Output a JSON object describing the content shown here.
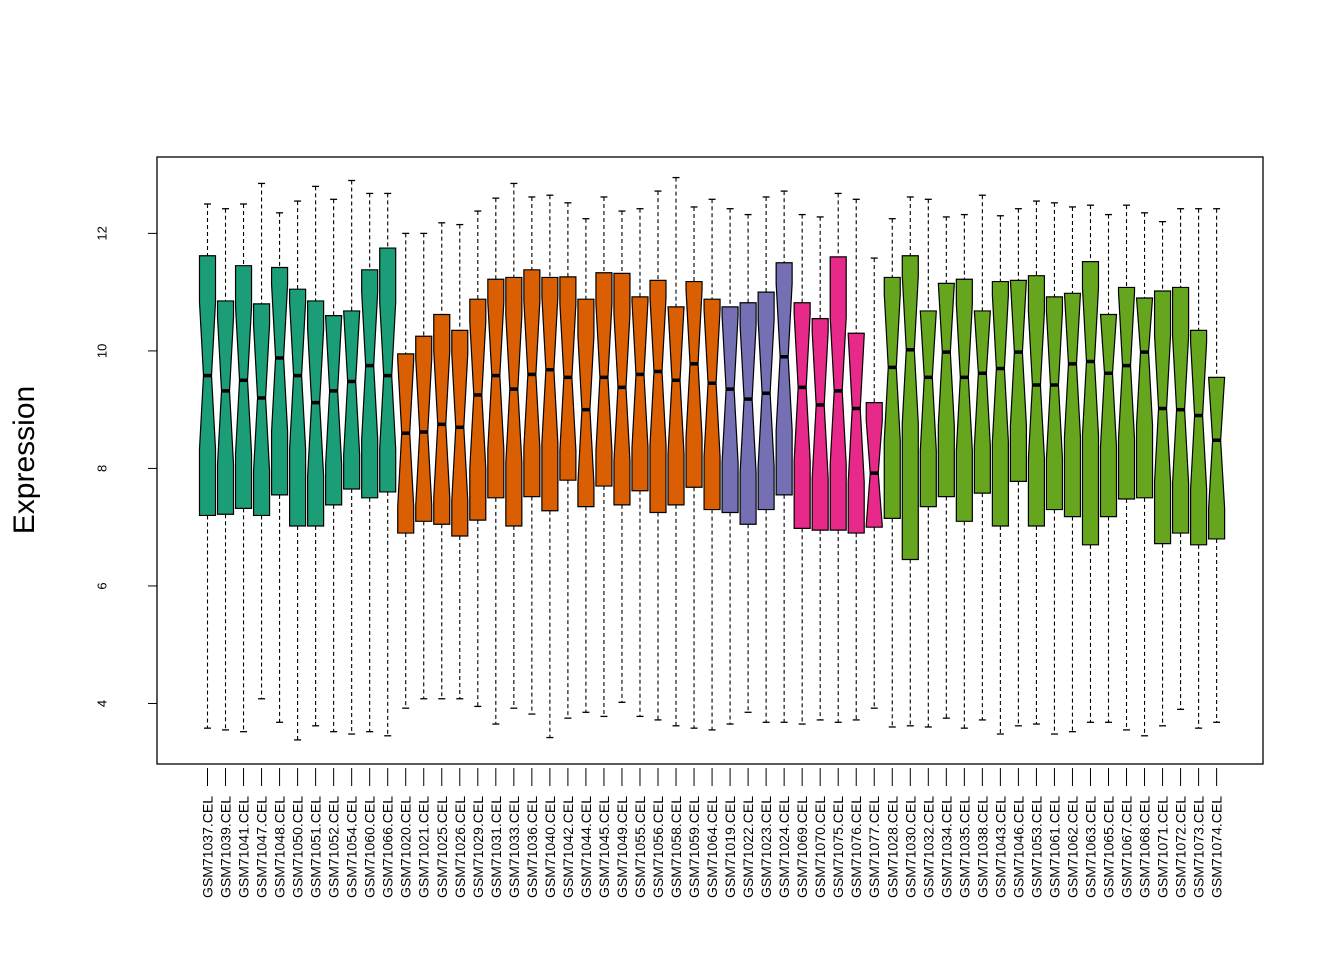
{
  "chart_data": {
    "type": "boxplot",
    "title": "",
    "xlabel": "",
    "ylabel": "Expression",
    "ylim": [
      2.97,
      13.3
    ],
    "yticks": [
      4,
      6,
      8,
      10,
      12
    ],
    "notched": true,
    "grid": false,
    "colors": {
      "group1": "#1b9e77",
      "group2": "#d95f02",
      "group3": "#7570b3",
      "group4": "#e7298a",
      "group5": "#66a61e"
    },
    "samples": [
      {
        "name": "GSM71037.CEL",
        "group": "group1",
        "min": 3.58,
        "q1": 7.2,
        "median": 9.58,
        "q3": 11.62,
        "max": 12.5
      },
      {
        "name": "GSM71039.CEL",
        "group": "group1",
        "min": 3.55,
        "q1": 7.22,
        "median": 9.32,
        "q3": 10.85,
        "max": 12.42
      },
      {
        "name": "GSM71041.CEL",
        "group": "group1",
        "min": 3.52,
        "q1": 7.32,
        "median": 9.5,
        "q3": 11.45,
        "max": 12.5
      },
      {
        "name": "GSM71047.CEL",
        "group": "group1",
        "min": 4.08,
        "q1": 7.2,
        "median": 9.2,
        "q3": 10.8,
        "max": 12.85
      },
      {
        "name": "GSM71048.CEL",
        "group": "group1",
        "min": 3.68,
        "q1": 7.55,
        "median": 9.88,
        "q3": 11.42,
        "max": 12.35
      },
      {
        "name": "GSM71050.CEL",
        "group": "group1",
        "min": 3.38,
        "q1": 7.02,
        "median": 9.58,
        "q3": 11.05,
        "max": 12.55
      },
      {
        "name": "GSM71051.CEL",
        "group": "group1",
        "min": 3.62,
        "q1": 7.02,
        "median": 9.12,
        "q3": 10.85,
        "max": 12.8
      },
      {
        "name": "GSM71052.CEL",
        "group": "group1",
        "min": 3.52,
        "q1": 7.38,
        "median": 9.32,
        "q3": 10.6,
        "max": 12.58
      },
      {
        "name": "GSM71054.CEL",
        "group": "group1",
        "min": 3.48,
        "q1": 7.65,
        "median": 9.48,
        "q3": 10.68,
        "max": 12.9
      },
      {
        "name": "GSM71060.CEL",
        "group": "group1",
        "min": 3.52,
        "q1": 7.5,
        "median": 9.75,
        "q3": 11.38,
        "max": 12.68
      },
      {
        "name": "GSM71066.CEL",
        "group": "group1",
        "min": 3.45,
        "q1": 7.6,
        "median": 9.58,
        "q3": 11.75,
        "max": 12.68
      },
      {
        "name": "GSM71020.CEL",
        "group": "group2",
        "min": 3.92,
        "q1": 6.9,
        "median": 8.6,
        "q3": 9.95,
        "max": 12.0
      },
      {
        "name": "GSM71021.CEL",
        "group": "group2",
        "min": 4.08,
        "q1": 7.1,
        "median": 8.62,
        "q3": 10.25,
        "max": 12.0
      },
      {
        "name": "GSM71025.CEL",
        "group": "group2",
        "min": 4.08,
        "q1": 7.05,
        "median": 8.75,
        "q3": 10.62,
        "max": 12.18
      },
      {
        "name": "GSM71026.CEL",
        "group": "group2",
        "min": 4.08,
        "q1": 6.85,
        "median": 8.7,
        "q3": 10.35,
        "max": 12.15
      },
      {
        "name": "GSM71029.CEL",
        "group": "group2",
        "min": 3.95,
        "q1": 7.12,
        "median": 9.25,
        "q3": 10.88,
        "max": 12.38
      },
      {
        "name": "GSM71031.CEL",
        "group": "group2",
        "min": 3.65,
        "q1": 7.5,
        "median": 9.58,
        "q3": 11.22,
        "max": 12.6
      },
      {
        "name": "GSM71033.CEL",
        "group": "group2",
        "min": 3.92,
        "q1": 7.02,
        "median": 9.35,
        "q3": 11.25,
        "max": 12.85
      },
      {
        "name": "GSM71036.CEL",
        "group": "group2",
        "min": 3.82,
        "q1": 7.52,
        "median": 9.6,
        "q3": 11.38,
        "max": 12.62
      },
      {
        "name": "GSM71040.CEL",
        "group": "group2",
        "min": 3.42,
        "q1": 7.28,
        "median": 9.68,
        "q3": 11.25,
        "max": 12.65
      },
      {
        "name": "GSM71042.CEL",
        "group": "group2",
        "min": 3.75,
        "q1": 7.8,
        "median": 9.55,
        "q3": 11.26,
        "max": 12.52
      },
      {
        "name": "GSM71044.CEL",
        "group": "group2",
        "min": 3.85,
        "q1": 7.35,
        "median": 9.0,
        "q3": 10.88,
        "max": 12.25
      },
      {
        "name": "GSM71045.CEL",
        "group": "group2",
        "min": 3.78,
        "q1": 7.7,
        "median": 9.55,
        "q3": 11.33,
        "max": 12.62
      },
      {
        "name": "GSM71049.CEL",
        "group": "group2",
        "min": 4.02,
        "q1": 7.38,
        "median": 9.38,
        "q3": 11.32,
        "max": 12.38
      },
      {
        "name": "GSM71055.CEL",
        "group": "group2",
        "min": 3.78,
        "q1": 7.62,
        "median": 9.6,
        "q3": 10.92,
        "max": 12.42
      },
      {
        "name": "GSM71056.CEL",
        "group": "group2",
        "min": 3.72,
        "q1": 7.25,
        "median": 9.65,
        "q3": 11.2,
        "max": 12.72
      },
      {
        "name": "GSM71058.CEL",
        "group": "group2",
        "min": 3.62,
        "q1": 7.38,
        "median": 9.5,
        "q3": 10.75,
        "max": 12.95
      },
      {
        "name": "GSM71059.CEL",
        "group": "group2",
        "min": 3.58,
        "q1": 7.68,
        "median": 9.78,
        "q3": 11.18,
        "max": 12.45
      },
      {
        "name": "GSM71064.CEL",
        "group": "group2",
        "min": 3.55,
        "q1": 7.3,
        "median": 9.45,
        "q3": 10.88,
        "max": 12.58
      },
      {
        "name": "GSM71019.CEL",
        "group": "group3",
        "min": 3.65,
        "q1": 7.25,
        "median": 9.35,
        "q3": 10.75,
        "max": 12.42
      },
      {
        "name": "GSM71022.CEL",
        "group": "group3",
        "min": 3.85,
        "q1": 7.05,
        "median": 9.18,
        "q3": 10.82,
        "max": 12.32
      },
      {
        "name": "GSM71023.CEL",
        "group": "group3",
        "min": 3.68,
        "q1": 7.3,
        "median": 9.28,
        "q3": 11.0,
        "max": 12.62
      },
      {
        "name": "GSM71024.CEL",
        "group": "group3",
        "min": 3.68,
        "q1": 7.55,
        "median": 9.9,
        "q3": 11.5,
        "max": 12.72
      },
      {
        "name": "GSM71069.CEL",
        "group": "group4",
        "min": 3.65,
        "q1": 6.98,
        "median": 9.38,
        "q3": 10.82,
        "max": 12.32
      },
      {
        "name": "GSM71070.CEL",
        "group": "group4",
        "min": 3.72,
        "q1": 6.95,
        "median": 9.08,
        "q3": 10.55,
        "max": 12.28
      },
      {
        "name": "GSM71075.CEL",
        "group": "group4",
        "min": 3.68,
        "q1": 6.95,
        "median": 9.32,
        "q3": 11.6,
        "max": 12.68
      },
      {
        "name": "GSM71076.CEL",
        "group": "group4",
        "min": 3.72,
        "q1": 6.9,
        "median": 9.02,
        "q3": 10.3,
        "max": 12.58
      },
      {
        "name": "GSM71077.CEL",
        "group": "group4",
        "min": 3.92,
        "q1": 7.0,
        "median": 7.92,
        "q3": 9.12,
        "max": 11.58
      },
      {
        "name": "GSM71028.CEL",
        "group": "group5",
        "min": 3.6,
        "q1": 7.15,
        "median": 9.72,
        "q3": 11.25,
        "max": 12.25
      },
      {
        "name": "GSM71030.CEL",
        "group": "group5",
        "min": 3.62,
        "q1": 6.45,
        "median": 10.02,
        "q3": 11.62,
        "max": 12.62
      },
      {
        "name": "GSM71032.CEL",
        "group": "group5",
        "min": 3.6,
        "q1": 7.35,
        "median": 9.55,
        "q3": 10.68,
        "max": 12.58
      },
      {
        "name": "GSM71034.CEL",
        "group": "group5",
        "min": 3.75,
        "q1": 7.52,
        "median": 9.98,
        "q3": 11.15,
        "max": 12.28
      },
      {
        "name": "GSM71035.CEL",
        "group": "group5",
        "min": 3.58,
        "q1": 7.1,
        "median": 9.55,
        "q3": 11.22,
        "max": 12.32
      },
      {
        "name": "GSM71038.CEL",
        "group": "group5",
        "min": 3.72,
        "q1": 7.58,
        "median": 9.62,
        "q3": 10.68,
        "max": 12.65
      },
      {
        "name": "GSM71043.CEL",
        "group": "group5",
        "min": 3.48,
        "q1": 7.02,
        "median": 9.7,
        "q3": 11.18,
        "max": 12.3
      },
      {
        "name": "GSM71046.CEL",
        "group": "group5",
        "min": 3.62,
        "q1": 7.78,
        "median": 9.98,
        "q3": 11.2,
        "max": 12.42
      },
      {
        "name": "GSM71053.CEL",
        "group": "group5",
        "min": 3.65,
        "q1": 7.02,
        "median": 9.42,
        "q3": 11.28,
        "max": 12.55
      },
      {
        "name": "GSM71061.CEL",
        "group": "group5",
        "min": 3.48,
        "q1": 7.3,
        "median": 9.42,
        "q3": 10.92,
        "max": 12.52
      },
      {
        "name": "GSM71062.CEL",
        "group": "group5",
        "min": 3.52,
        "q1": 7.18,
        "median": 9.78,
        "q3": 10.98,
        "max": 12.45
      },
      {
        "name": "GSM71063.CEL",
        "group": "group5",
        "min": 3.68,
        "q1": 6.7,
        "median": 9.82,
        "q3": 11.52,
        "max": 12.48
      },
      {
        "name": "GSM71065.CEL",
        "group": "group5",
        "min": 3.68,
        "q1": 7.18,
        "median": 9.62,
        "q3": 10.62,
        "max": 12.32
      },
      {
        "name": "GSM71067.CEL",
        "group": "group5",
        "min": 3.55,
        "q1": 7.48,
        "median": 9.75,
        "q3": 11.08,
        "max": 12.48
      },
      {
        "name": "GSM71068.CEL",
        "group": "group5",
        "min": 3.45,
        "q1": 7.5,
        "median": 9.98,
        "q3": 10.9,
        "max": 12.35
      },
      {
        "name": "GSM71071.CEL",
        "group": "group5",
        "min": 3.62,
        "q1": 6.72,
        "median": 9.02,
        "q3": 11.02,
        "max": 12.2
      },
      {
        "name": "GSM71072.CEL",
        "group": "group5",
        "min": 3.9,
        "q1": 6.9,
        "median": 9.0,
        "q3": 11.08,
        "max": 12.42
      },
      {
        "name": "GSM71073.CEL",
        "group": "group5",
        "min": 3.58,
        "q1": 6.7,
        "median": 8.9,
        "q3": 10.35,
        "max": 12.42
      },
      {
        "name": "GSM71074.CEL",
        "group": "group5",
        "min": 3.68,
        "q1": 6.8,
        "median": 8.48,
        "q3": 9.55,
        "max": 12.42
      }
    ]
  }
}
